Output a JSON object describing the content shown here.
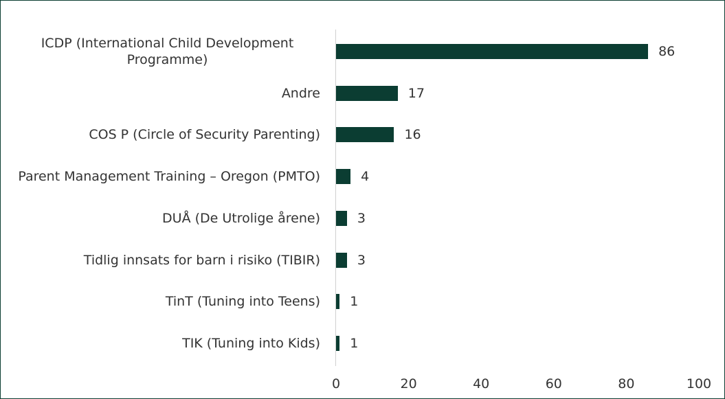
{
  "chart_data": {
    "type": "barh",
    "categories": [
      "ICDP (International Child Development Programme)",
      "Andre",
      "COS P (Circle of Security Parenting)",
      "Parent Management Training – Oregon (PMTO)",
      "DUÅ (De Utrolige årene)",
      "Tidlig innsats for barn i risiko (TIBIR)",
      "TinT (Tuning into Teens)",
      "TIK (Tuning into Kids)"
    ],
    "values": [
      86,
      17,
      16,
      4,
      3,
      3,
      1,
      1
    ],
    "color": "#0b3d32",
    "xlim": [
      0,
      100
    ],
    "xticks": [
      0,
      20,
      40,
      60,
      80,
      100
    ],
    "grid": false
  }
}
